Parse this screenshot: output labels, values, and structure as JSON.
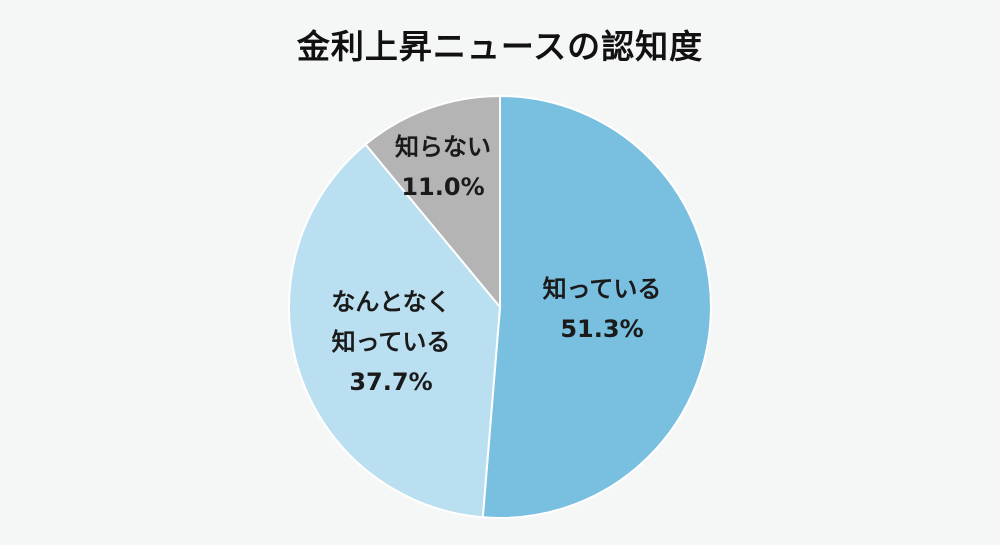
{
  "chart_data": {
    "type": "pie",
    "title": "金利上昇ニュースの認知度",
    "start_angle": "top",
    "direction": "clockwise",
    "slices": [
      {
        "label_lines": [
          "知っている"
        ],
        "value": 51.3,
        "value_label": "51.3%",
        "color": "#79bfe0"
      },
      {
        "label_lines": [
          "なんとなく",
          "知っている"
        ],
        "value": 37.7,
        "value_label": "37.7%",
        "color": "#b9dff0"
      },
      {
        "label_lines": [
          "知らない"
        ],
        "value": 11.0,
        "value_label": "11.0%",
        "color": "#b4b4b4"
      }
    ]
  }
}
